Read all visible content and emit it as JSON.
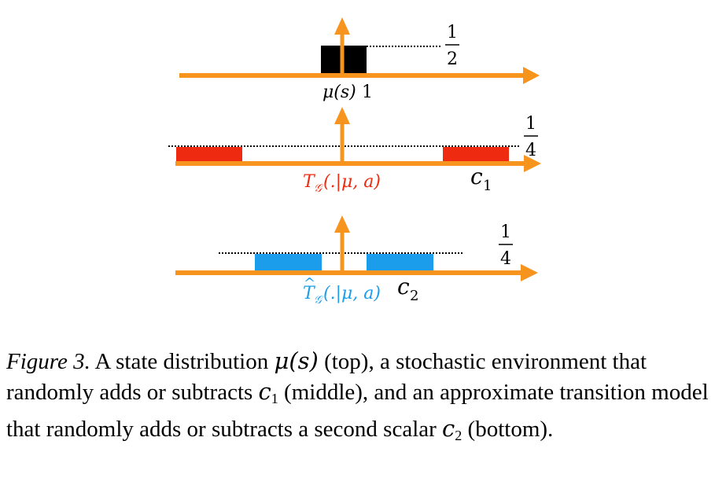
{
  "colors": {
    "axis": "#F7941D",
    "state": "#000000",
    "env": "#EE2B10",
    "model": "#1C9DEB"
  },
  "diagram": {
    "top": {
      "fraction_num": "1",
      "fraction_den": "2",
      "label_mu": "μ(s)",
      "label_one": "1"
    },
    "middle": {
      "fraction_num": "1",
      "fraction_den": "4",
      "label_T": "T",
      "label_G": "𝒢",
      "label_args": "(.|μ, a)",
      "label_c": "c",
      "label_c_sub": "1"
    },
    "bottom": {
      "fraction_num": "1",
      "fraction_den": "4",
      "label_T": "T",
      "label_hat": "^",
      "label_G": "𝒢",
      "label_args": "(.|μ, a)",
      "label_c": "c",
      "label_c_sub": "2"
    }
  },
  "caption": {
    "label": "Figure 3.",
    "part1": " A state distribution ",
    "mu": "μ(s)",
    "part2": " (top), a stochastic environment that randomly adds or subtracts ",
    "c1": "c",
    "c1_sub": "1",
    "part3": " (middle), and an approximate transition model that randomly adds or subtracts a second scalar ",
    "c2": "c",
    "c2_sub": "2",
    "part4": " (bottom)."
  }
}
